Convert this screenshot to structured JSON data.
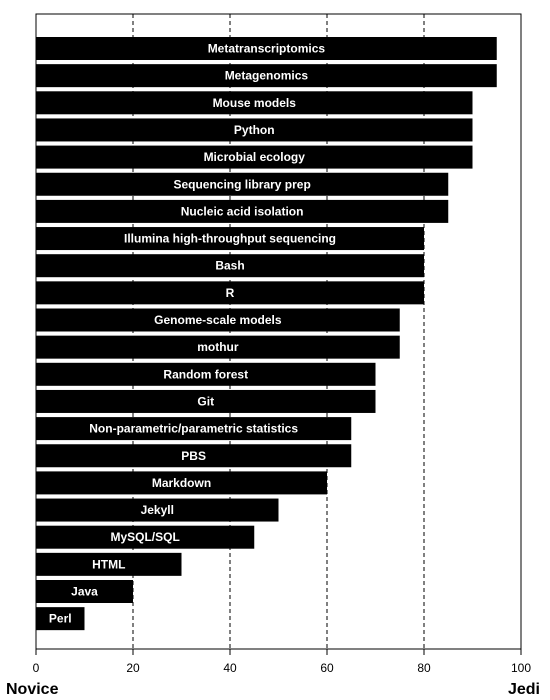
{
  "chart_data": {
    "type": "bar",
    "orientation": "horizontal",
    "categories": [
      "Metatranscriptomics",
      "Metagenomics",
      "Mouse models",
      "Python",
      "Microbial ecology",
      "Sequencing library prep",
      "Nucleic acid isolation",
      "Illumina high-throughput sequencing",
      "Bash",
      "R",
      "Genome-scale models",
      "mothur",
      "Random forest",
      "Git",
      "Non-parametric/parametric statistics",
      "PBS",
      "Markdown",
      "Jekyll",
      "MySQL/SQL",
      "HTML",
      "Java",
      "Perl"
    ],
    "values": [
      95,
      95,
      90,
      90,
      90,
      85,
      85,
      80,
      80,
      80,
      75,
      75,
      70,
      70,
      65,
      65,
      60,
      50,
      45,
      30,
      20,
      10
    ],
    "xlim": [
      0,
      100
    ],
    "xticks": [
      0,
      20,
      40,
      60,
      80,
      100
    ],
    "grid": "vertical dashed",
    "bar_color": "#000000",
    "label_color": "#ffffff",
    "x_left_label": "Novice",
    "x_right_label": "Jedi"
  }
}
